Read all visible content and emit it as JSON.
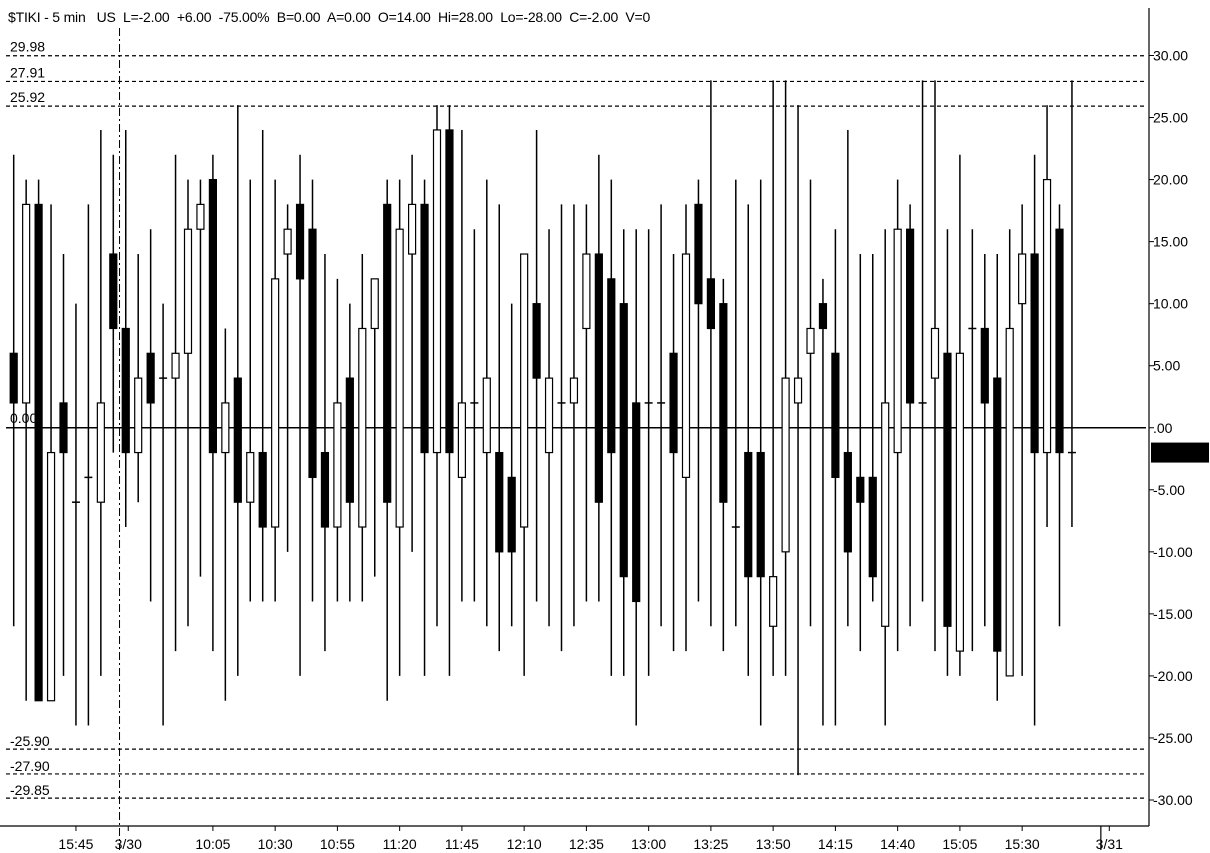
{
  "header": {
    "text": "$TIKI - 5 min   US  L=-2.00  +6.00  -75.00%  B=0.00  A=0.00  O=14.00  Hi=28.00  Lo=-28.00  C=-2.00  V=0"
  },
  "colors": {
    "up": "#ffffff",
    "down": "#000000",
    "wick": "#000000",
    "grid": "#000000",
    "last_badge_bg": "#000000",
    "last_badge_fg": "#ffffff"
  },
  "chart_data": {
    "type": "candlestick",
    "title": "$TIKI - 5 min",
    "ylim": [
      -32.0,
      31.5
    ],
    "y_ticks": [
      30,
      25,
      20,
      15,
      10,
      5,
      0,
      -5,
      -10,
      -15,
      -20,
      -25,
      -30
    ],
    "y_tick_labels": [
      "30.00",
      "25.00",
      "20.00",
      "15.00",
      "10.00",
      "5.00",
      ".00",
      "-5.00",
      "-10.00",
      "-15.00",
      "-20.00",
      "-25.00",
      "-30.00"
    ],
    "x_tick_labels": [
      {
        "label": "15:45",
        "i": 5
      },
      {
        "label": "3/30",
        "i": 9.2
      },
      {
        "label": "10:05",
        "i": 16
      },
      {
        "label": "10:30",
        "i": 21
      },
      {
        "label": "10:55",
        "i": 26
      },
      {
        "label": "11:20",
        "i": 31
      },
      {
        "label": "11:45",
        "i": 36
      },
      {
        "label": "12:10",
        "i": 41
      },
      {
        "label": "12:35",
        "i": 46
      },
      {
        "label": "13:00",
        "i": 51
      },
      {
        "label": "13:25",
        "i": 56
      },
      {
        "label": "13:50",
        "i": 61
      },
      {
        "label": "14:15",
        "i": 66
      },
      {
        "label": "14:40",
        "i": 71
      },
      {
        "label": "15:05",
        "i": 76
      },
      {
        "label": "15:30",
        "i": 81
      },
      {
        "label": "3/31",
        "i": 88
      }
    ],
    "session_divider_index": 8.5,
    "session_end_index": 87,
    "hlines": [
      {
        "value": 29.98,
        "label": "29.98"
      },
      {
        "value": 27.91,
        "label": "27.91"
      },
      {
        "value": 25.92,
        "label": "25.92"
      },
      {
        "value": -25.9,
        "label": "-25.90"
      },
      {
        "value": -27.9,
        "label": "-27.90"
      },
      {
        "value": -29.85,
        "label": "-29.85"
      }
    ],
    "zero_line": {
      "value": 0.0,
      "label": "0.00"
    },
    "last_value": {
      "value": -2.0,
      "label": "-2.00"
    },
    "candles": [
      {
        "o": 6,
        "h": 22,
        "l": -16,
        "c": 2
      },
      {
        "o": 2,
        "h": 20,
        "l": -22,
        "c": 18
      },
      {
        "o": 18,
        "h": 20,
        "l": -22,
        "c": -22
      },
      {
        "o": -22,
        "h": 18,
        "l": -22,
        "c": -2
      },
      {
        "o": 2,
        "h": 14,
        "l": -20,
        "c": -2
      },
      {
        "o": -6,
        "h": 10,
        "l": -24,
        "c": -6
      },
      {
        "o": -4,
        "h": 18,
        "l": -24,
        "c": -4
      },
      {
        "o": -6,
        "h": 24,
        "l": -20,
        "c": 2
      },
      {
        "o": 14,
        "h": 22,
        "l": -2,
        "c": 8
      },
      {
        "o": 8,
        "h": 24,
        "l": -8,
        "c": -2
      },
      {
        "o": -2,
        "h": 14,
        "l": -6,
        "c": 4
      },
      {
        "o": 6,
        "h": 16,
        "l": -14,
        "c": 2
      },
      {
        "o": 4,
        "h": 10,
        "l": -24,
        "c": 4
      },
      {
        "o": 4,
        "h": 22,
        "l": -18,
        "c": 6
      },
      {
        "o": 6,
        "h": 20,
        "l": -16,
        "c": 16
      },
      {
        "o": 16,
        "h": 20,
        "l": -12,
        "c": 18
      },
      {
        "o": 20,
        "h": 22,
        "l": -18,
        "c": -2
      },
      {
        "o": -2,
        "h": 8,
        "l": -22,
        "c": 2
      },
      {
        "o": 4,
        "h": 26,
        "l": -20,
        "c": -6
      },
      {
        "o": -6,
        "h": 20,
        "l": -14,
        "c": -2
      },
      {
        "o": -2,
        "h": 24,
        "l": -14,
        "c": -8
      },
      {
        "o": -8,
        "h": 20,
        "l": -14,
        "c": 12
      },
      {
        "o": 14,
        "h": 18,
        "l": -10,
        "c": 16
      },
      {
        "o": 18,
        "h": 22,
        "l": -20,
        "c": 12
      },
      {
        "o": 16,
        "h": 20,
        "l": -14,
        "c": -4
      },
      {
        "o": -2,
        "h": 14,
        "l": -18,
        "c": -8
      },
      {
        "o": -8,
        "h": 12,
        "l": -14,
        "c": 2
      },
      {
        "o": 4,
        "h": 10,
        "l": -14,
        "c": -6
      },
      {
        "o": -8,
        "h": 14,
        "l": -14,
        "c": 8
      },
      {
        "o": 8,
        "h": 12,
        "l": -12,
        "c": 12
      },
      {
        "o": 18,
        "h": 20,
        "l": -22,
        "c": -6
      },
      {
        "o": -8,
        "h": 20,
        "l": -20,
        "c": 16
      },
      {
        "o": 14,
        "h": 22,
        "l": -10,
        "c": 18
      },
      {
        "o": 18,
        "h": 20,
        "l": -20,
        "c": -2
      },
      {
        "o": -2,
        "h": 26,
        "l": -16,
        "c": 24
      },
      {
        "o": 24,
        "h": 26,
        "l": -20,
        "c": -2
      },
      {
        "o": -4,
        "h": 24,
        "l": -14,
        "c": 2
      },
      {
        "o": 2,
        "h": 16,
        "l": -14,
        "c": 2
      },
      {
        "o": -2,
        "h": 20,
        "l": -16,
        "c": 4
      },
      {
        "o": -2,
        "h": 18,
        "l": -18,
        "c": -10
      },
      {
        "o": -4,
        "h": 10,
        "l": -16,
        "c": -10
      },
      {
        "o": -8,
        "h": 14,
        "l": -20,
        "c": 14
      },
      {
        "o": 10,
        "h": 24,
        "l": -14,
        "c": 4
      },
      {
        "o": -2,
        "h": 16,
        "l": -16,
        "c": 4
      },
      {
        "o": 2,
        "h": 18,
        "l": -18,
        "c": 2
      },
      {
        "o": 2,
        "h": 18,
        "l": -16,
        "c": 4
      },
      {
        "o": 8,
        "h": 18,
        "l": -14,
        "c": 14
      },
      {
        "o": 14,
        "h": 22,
        "l": -14,
        "c": -6
      },
      {
        "o": 12,
        "h": 20,
        "l": -20,
        "c": -2
      },
      {
        "o": 10,
        "h": 16,
        "l": -20,
        "c": -12
      },
      {
        "o": 2,
        "h": 16,
        "l": -24,
        "c": -14
      },
      {
        "o": 2,
        "h": 16,
        "l": -20,
        "c": 2
      },
      {
        "o": 2,
        "h": 18,
        "l": -16,
        "c": 2
      },
      {
        "o": 6,
        "h": 14,
        "l": -18,
        "c": -2
      },
      {
        "o": -4,
        "h": 18,
        "l": -18,
        "c": 14
      },
      {
        "o": 18,
        "h": 20,
        "l": -14,
        "c": 10
      },
      {
        "o": 12,
        "h": 28,
        "l": -16,
        "c": 8
      },
      {
        "o": 10,
        "h": 12,
        "l": -18,
        "c": -6
      },
      {
        "o": -8,
        "h": 20,
        "l": -16,
        "c": -8
      },
      {
        "o": -2,
        "h": 18,
        "l": -20,
        "c": -12
      },
      {
        "o": -2,
        "h": 20,
        "l": -24,
        "c": -12
      },
      {
        "o": -16,
        "h": 28,
        "l": -20,
        "c": -12
      },
      {
        "o": -10,
        "h": 28,
        "l": -20,
        "c": 4
      },
      {
        "o": 2,
        "h": 26,
        "l": -28,
        "c": 4
      },
      {
        "o": 6,
        "h": 20,
        "l": -16,
        "c": 8
      },
      {
        "o": 10,
        "h": 12,
        "l": -24,
        "c": 8
      },
      {
        "o": 6,
        "h": 16,
        "l": -24,
        "c": -4
      },
      {
        "o": -2,
        "h": 24,
        "l": -16,
        "c": -10
      },
      {
        "o": -4,
        "h": 14,
        "l": -18,
        "c": -6
      },
      {
        "o": -4,
        "h": 14,
        "l": -14,
        "c": -12
      },
      {
        "o": -16,
        "h": 16,
        "l": -24,
        "c": 2
      },
      {
        "o": -2,
        "h": 20,
        "l": -18,
        "c": 16
      },
      {
        "o": 16,
        "h": 18,
        "l": -16,
        "c": 2
      },
      {
        "o": 2,
        "h": 28,
        "l": -14,
        "c": 2
      },
      {
        "o": 4,
        "h": 28,
        "l": -18,
        "c": 8
      },
      {
        "o": 6,
        "h": 16,
        "l": -20,
        "c": -16
      },
      {
        "o": -18,
        "h": 22,
        "l": -20,
        "c": 6
      },
      {
        "o": 8,
        "h": 16,
        "l": -18,
        "c": 8
      },
      {
        "o": 8,
        "h": 14,
        "l": -16,
        "c": 2
      },
      {
        "o": 4,
        "h": 14,
        "l": -22,
        "c": -18
      },
      {
        "o": -20,
        "h": 16,
        "l": -20,
        "c": 8
      },
      {
        "o": 10,
        "h": 18,
        "l": -20,
        "c": 14
      },
      {
        "o": 14,
        "h": 22,
        "l": -24,
        "c": -2
      },
      {
        "o": -2,
        "h": 26,
        "l": -8,
        "c": 20
      },
      {
        "o": 16,
        "h": 18,
        "l": -16,
        "c": -2
      },
      {
        "o": -2,
        "h": 28,
        "l": -8,
        "c": -2
      }
    ]
  }
}
